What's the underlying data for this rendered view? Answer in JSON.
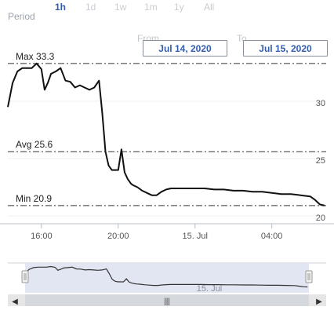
{
  "period": {
    "label": "Period",
    "options": [
      {
        "label": "1h",
        "active": true
      },
      {
        "label": "1d",
        "active": false
      },
      {
        "label": "1w",
        "active": false
      },
      {
        "label": "1m",
        "active": false
      },
      {
        "label": "1y",
        "active": false
      },
      {
        "label": "All",
        "active": false
      }
    ]
  },
  "range": {
    "from_label": "From",
    "from_value": "Jul 14, 2020",
    "to_label": "To",
    "to_value": "Jul 15, 2020"
  },
  "colors": {
    "accent": "#335cad",
    "line": "#111111",
    "navigator_fill": "#dfe3f2",
    "scrollbar": "#e6e6e6"
  },
  "chart_data": {
    "type": "line",
    "x_ticks": [
      "16:00",
      "20:00",
      "15. Jul",
      "04:00"
    ],
    "y_ticks": [
      20,
      25,
      30
    ],
    "ylim": [
      20,
      34
    ],
    "plot_lines": [
      {
        "label": "Max 33.3",
        "value": 33.3
      },
      {
        "label": "Avg 25.6",
        "value": 25.6
      },
      {
        "label": "Min 20.9",
        "value": 20.9
      }
    ],
    "series": [
      {
        "x": [
          "14:15",
          "14:30",
          "14:45",
          "15:00",
          "15:15",
          "15:30",
          "15:45",
          "16:00",
          "16:10",
          "16:20",
          "16:30",
          "16:45",
          "17:00",
          "17:15",
          "17:30",
          "17:45",
          "18:00",
          "18:15",
          "18:30",
          "18:45",
          "19:00",
          "19:10",
          "19:20",
          "19:30",
          "19:40",
          "19:50",
          "20:00",
          "20:10",
          "20:20",
          "20:30",
          "20:35",
          "20:40",
          "20:45",
          "21:00",
          "21:15",
          "21:30",
          "21:45",
          "22:00",
          "22:15",
          "22:30",
          "22:45",
          "23:00",
          "23:15",
          "23:30",
          "23:45",
          "00:00",
          "00:30",
          "01:00",
          "01:30",
          "02:00",
          "02:30",
          "03:00",
          "03:30",
          "04:00",
          "04:30",
          "05:00",
          "05:30",
          "06:00",
          "06:15",
          "06:30",
          "06:45"
        ],
        "values": [
          29.5,
          31.6,
          32.6,
          32.9,
          32.9,
          32.9,
          33.3,
          32.8,
          31.0,
          31.6,
          32.4,
          32.6,
          32.9,
          31.8,
          31.7,
          31.2,
          31.4,
          31.2,
          31.0,
          31.2,
          31.8,
          29.0,
          25.6,
          24.4,
          24.0,
          24.0,
          24.0,
          25.8,
          23.8,
          23.2,
          23.0,
          22.8,
          22.7,
          22.5,
          22.2,
          22.0,
          21.8,
          21.8,
          22.1,
          22.3,
          22.4,
          22.4,
          22.4,
          22.4,
          22.4,
          22.4,
          22.4,
          22.3,
          22.3,
          22.2,
          22.2,
          22.1,
          22.1,
          22.0,
          21.9,
          21.9,
          21.8,
          21.7,
          21.4,
          21.0,
          20.9
        ]
      }
    ],
    "navigator": {
      "x_tick": "15. Jul"
    }
  },
  "navigator_scrollbar": {
    "left_arrow": "◀",
    "right_arrow": "▶",
    "grip": "|||"
  }
}
